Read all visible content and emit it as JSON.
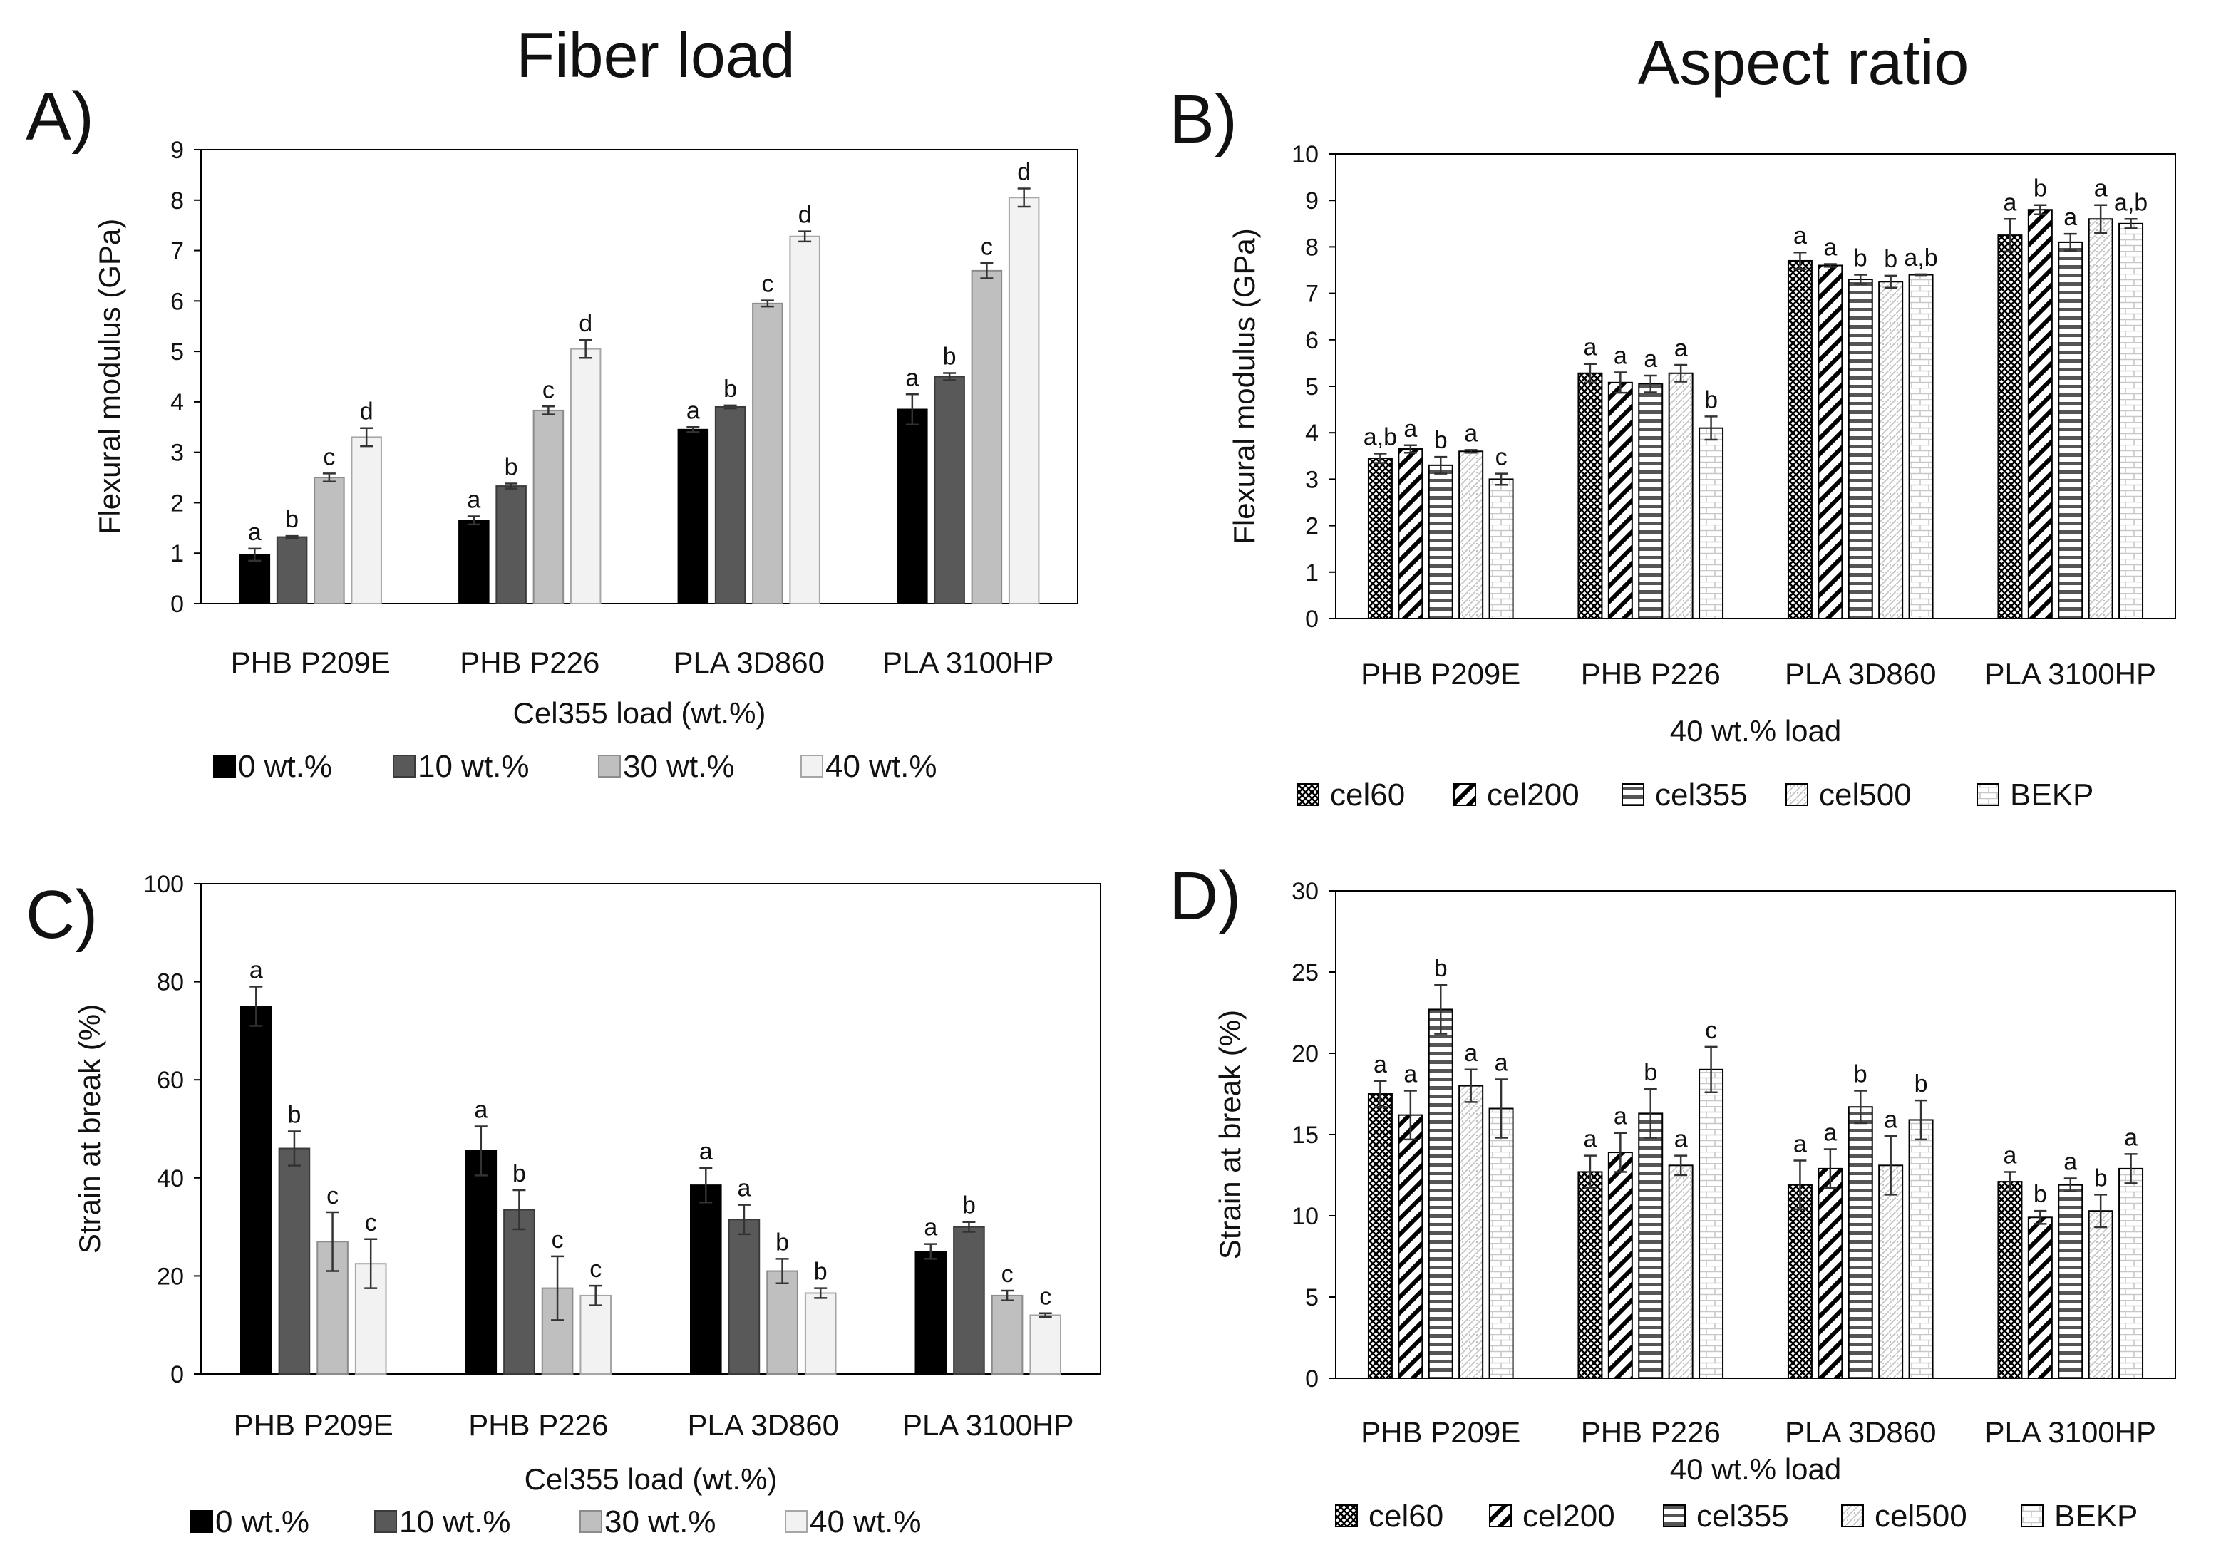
{
  "titles": {
    "left": "Fiber load",
    "right": "Aspect ratio"
  },
  "colors": {
    "black": "#000000",
    "dark_grey": "#595959",
    "light_grey": "#bfbfbf",
    "very_light_grey": "#f2f2f2",
    "axis": "#000000",
    "error_bar": "#333333"
  },
  "chart_data": [
    {
      "panel": "A)",
      "type": "bar",
      "ylabel": "Flexural modulus (GPa)",
      "xlabel": "Cel355 load (wt.%)",
      "ylim": [
        0,
        9
      ],
      "yticks": [
        0,
        1,
        2,
        3,
        4,
        5,
        6,
        7,
        8,
        9
      ],
      "categories": [
        "PHB P209E",
        "PHB P226",
        "PLA 3D860",
        "PLA 3100HP"
      ],
      "series": [
        {
          "name": "0 wt.%",
          "style": "black",
          "values": [
            0.97,
            1.65,
            3.45,
            3.85
          ],
          "errors": [
            0.12,
            0.08,
            0.05,
            0.3
          ],
          "letters": [
            "a",
            "a",
            "a",
            "a"
          ]
        },
        {
          "name": "10 wt.%",
          "style": "dark",
          "values": [
            1.32,
            2.33,
            3.9,
            4.5
          ],
          "errors": [
            0.02,
            0.05,
            0.03,
            0.07
          ],
          "letters": [
            "b",
            "b",
            "b",
            "b"
          ]
        },
        {
          "name": "30 wt.%",
          "style": "light",
          "values": [
            2.5,
            3.83,
            5.95,
            6.6
          ],
          "errors": [
            0.08,
            0.08,
            0.06,
            0.15
          ],
          "letters": [
            "c",
            "c",
            "c",
            "c"
          ]
        },
        {
          "name": "40 wt.%",
          "style": "vlight",
          "values": [
            3.3,
            5.05,
            7.28,
            8.05
          ],
          "errors": [
            0.18,
            0.18,
            0.1,
            0.18
          ],
          "letters": [
            "d",
            "d",
            "d",
            "d"
          ]
        }
      ]
    },
    {
      "panel": "B)",
      "type": "bar",
      "ylabel": "Flexural modulus (GPa)",
      "xlabel": "40 wt.% load",
      "ylim": [
        0,
        10
      ],
      "yticks": [
        0,
        1,
        2,
        3,
        4,
        5,
        6,
        7,
        8,
        9,
        10
      ],
      "categories": [
        "PHB P209E",
        "PHB P226",
        "PLA 3D860",
        "PLA 3100HP"
      ],
      "series": [
        {
          "name": "cel60",
          "style": "crosshatch",
          "values": [
            3.45,
            5.28,
            7.7,
            8.25
          ],
          "errors": [
            0.1,
            0.2,
            0.18,
            0.35
          ],
          "letters": [
            "a,b",
            "a",
            "a",
            "a"
          ]
        },
        {
          "name": "cel200",
          "style": "diagonal",
          "values": [
            3.65,
            5.08,
            7.6,
            8.8
          ],
          "errors": [
            0.08,
            0.22,
            0.03,
            0.1
          ],
          "letters": [
            "a",
            "a",
            "a",
            "b"
          ]
        },
        {
          "name": "cel355",
          "style": "horizontal",
          "values": [
            3.3,
            5.05,
            7.3,
            8.1
          ],
          "errors": [
            0.18,
            0.18,
            0.1,
            0.18
          ],
          "letters": [
            "b",
            "a",
            "b",
            "a"
          ]
        },
        {
          "name": "cel500",
          "style": "dotted",
          "values": [
            3.6,
            5.28,
            7.25,
            8.6
          ],
          "errors": [
            0.03,
            0.18,
            0.13,
            0.3
          ],
          "letters": [
            "a",
            "a",
            "b",
            "a"
          ]
        },
        {
          "name": "BEKP",
          "style": "brick",
          "values": [
            3.0,
            4.1,
            7.4,
            8.5
          ],
          "errors": [
            0.12,
            0.25,
            0.01,
            0.1
          ],
          "letters": [
            "c",
            "b",
            "a,b",
            "a,b"
          ]
        }
      ]
    },
    {
      "panel": "C)",
      "type": "bar",
      "ylabel": "Strain at break (%)",
      "xlabel": "Cel355 load (wt.%)",
      "ylim": [
        0,
        100
      ],
      "yticks": [
        0,
        20,
        40,
        60,
        80,
        100
      ],
      "categories": [
        "PHB P209E",
        "PHB P226",
        "PLA 3D860",
        "PLA 3100HP"
      ],
      "series": [
        {
          "name": "0 wt.%",
          "style": "black",
          "values": [
            75,
            45.5,
            38.5,
            25
          ],
          "errors": [
            4,
            5,
            3.5,
            1.5
          ],
          "letters": [
            "a",
            "a",
            "a",
            "a"
          ]
        },
        {
          "name": "10 wt.%",
          "style": "dark",
          "values": [
            46,
            33.5,
            31.5,
            30
          ],
          "errors": [
            3.5,
            4,
            3,
            1
          ],
          "letters": [
            "b",
            "b",
            "a",
            "b"
          ]
        },
        {
          "name": "30 wt.%",
          "style": "light",
          "values": [
            27,
            17.5,
            21,
            16
          ],
          "errors": [
            6,
            6.5,
            2.5,
            1
          ],
          "letters": [
            "c",
            "c",
            "b",
            "c"
          ]
        },
        {
          "name": "40 wt.%",
          "style": "vlight",
          "values": [
            22.5,
            16,
            16.5,
            12
          ],
          "errors": [
            5,
            2,
            1,
            0.4
          ],
          "letters": [
            "c",
            "c",
            "b",
            "c"
          ]
        }
      ]
    },
    {
      "panel": "D)",
      "type": "bar",
      "ylabel": "Strain at break (%)",
      "xlabel": "40 wt.% load",
      "ylim": [
        0,
        30
      ],
      "yticks": [
        0,
        5,
        10,
        15,
        20,
        25,
        30
      ],
      "categories": [
        "PHB P209E",
        "PHB P226",
        "PLA 3D860",
        "PLA 3100HP"
      ],
      "series": [
        {
          "name": "cel60",
          "style": "crosshatch",
          "values": [
            17.5,
            12.7,
            11.9,
            12.1
          ],
          "errors": [
            0.8,
            1.0,
            1.5,
            0.6
          ],
          "letters": [
            "a",
            "a",
            "a",
            "a"
          ]
        },
        {
          "name": "cel200",
          "style": "diagonal",
          "values": [
            16.2,
            13.9,
            12.9,
            9.9
          ],
          "errors": [
            1.5,
            1.2,
            1.2,
            0.4
          ],
          "letters": [
            "a",
            "a",
            "a",
            "b"
          ]
        },
        {
          "name": "cel355",
          "style": "horizontal",
          "values": [
            22.7,
            16.3,
            16.7,
            11.9
          ],
          "errors": [
            1.5,
            1.5,
            1.0,
            0.4
          ],
          "letters": [
            "b",
            "b",
            "b",
            "a"
          ]
        },
        {
          "name": "cel500",
          "style": "dotted",
          "values": [
            18.0,
            13.1,
            13.1,
            10.3
          ],
          "errors": [
            1.0,
            0.6,
            1.8,
            1.0
          ],
          "letters": [
            "a",
            "a",
            "a",
            "b"
          ]
        },
        {
          "name": "BEKP",
          "style": "brick",
          "values": [
            16.6,
            19.0,
            15.9,
            12.9
          ],
          "errors": [
            1.8,
            1.4,
            1.2,
            0.9
          ],
          "letters": [
            "a",
            "c",
            "b",
            "a"
          ]
        }
      ]
    }
  ]
}
